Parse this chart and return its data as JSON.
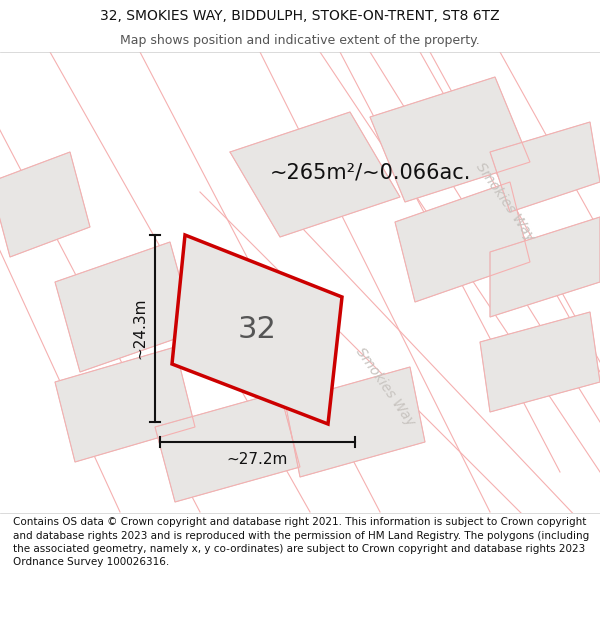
{
  "title_line1": "32, SMOKIES WAY, BIDDULPH, STOKE-ON-TRENT, ST8 6TZ",
  "title_line2": "Map shows position and indicative extent of the property.",
  "area_text": "~265m²/~0.066ac.",
  "dim_height": "~24.3m",
  "dim_width": "~27.2m",
  "plot_label": "32",
  "road_label1": "Smokies Way",
  "road_label2": "Smokies Way",
  "footer": "Contains OS data © Crown copyright and database right 2021. This information is subject to Crown copyright and database rights 2023 and is reproduced with the permission of HM Land Registry. The polygons (including the associated geometry, namely x, y co-ordinates) are subject to Crown copyright and database rights 2023 Ordnance Survey 100026316.",
  "map_bg": "#fafafa",
  "plot_fill": "#e8e6e4",
  "plot_edge": "#cc0000",
  "neighbor_fill": "#e8e6e4",
  "neighbor_stroke": "#f5b0b0",
  "road_stroke": "#f5b0b0",
  "dim_color": "#111111",
  "text_dark": "#111111",
  "road_text_color": "#c8c4c0",
  "header_bg": "#ffffff",
  "footer_bg": "#ffffff"
}
